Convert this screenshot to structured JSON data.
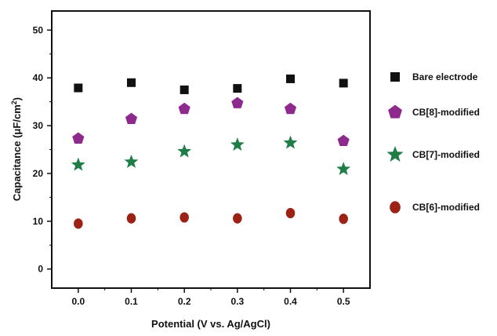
{
  "chart_data": {
    "type": "scatter",
    "title": "",
    "xlabel": "Potential (V vs. Ag/AgCl)",
    "ylabel": {
      "prefix": "Capacitance (",
      "mu": "μ",
      "unit": "F/cm",
      "exp": "2",
      "suffix": ")"
    },
    "xlim": [
      -0.05,
      0.55
    ],
    "ylim": [
      -4,
      54
    ],
    "xticks": [
      0.0,
      0.1,
      0.2,
      0.3,
      0.4,
      0.5
    ],
    "xtick_labels": [
      "0.0",
      "0.1",
      "0.2",
      "0.3",
      "0.4",
      "0.5"
    ],
    "yticks": [
      0,
      10,
      20,
      30,
      40,
      50
    ],
    "ytick_labels": [
      "0",
      "10",
      "20",
      "30",
      "40",
      "50"
    ],
    "grid": false,
    "legend_position": "right, outside plot",
    "series": [
      {
        "name": "Bare electrode",
        "marker": "square",
        "color": "#111111",
        "x": [
          0.0,
          0.1,
          0.2,
          0.3,
          0.4,
          0.5
        ],
        "y": [
          37.9,
          39.0,
          37.5,
          37.8,
          39.8,
          38.9
        ]
      },
      {
        "name": "CB[8]-modified",
        "marker": "pentagon",
        "color": "#8e2a8e",
        "x": [
          0.0,
          0.1,
          0.2,
          0.3,
          0.4,
          0.5
        ],
        "y": [
          27.3,
          31.4,
          33.5,
          34.7,
          33.5,
          26.8
        ]
      },
      {
        "name": "CB[7]-modified",
        "marker": "star",
        "color": "#1e7e45",
        "x": [
          0.0,
          0.1,
          0.2,
          0.3,
          0.4,
          0.5
        ],
        "y": [
          21.8,
          22.4,
          24.6,
          26.0,
          26.4,
          20.9
        ]
      },
      {
        "name": "CB[6]-modified",
        "marker": "circle",
        "color": "#9c2216",
        "x": [
          0.0,
          0.1,
          0.2,
          0.3,
          0.4,
          0.5
        ],
        "y": [
          9.5,
          10.6,
          10.8,
          10.6,
          11.7,
          10.5
        ]
      }
    ]
  }
}
